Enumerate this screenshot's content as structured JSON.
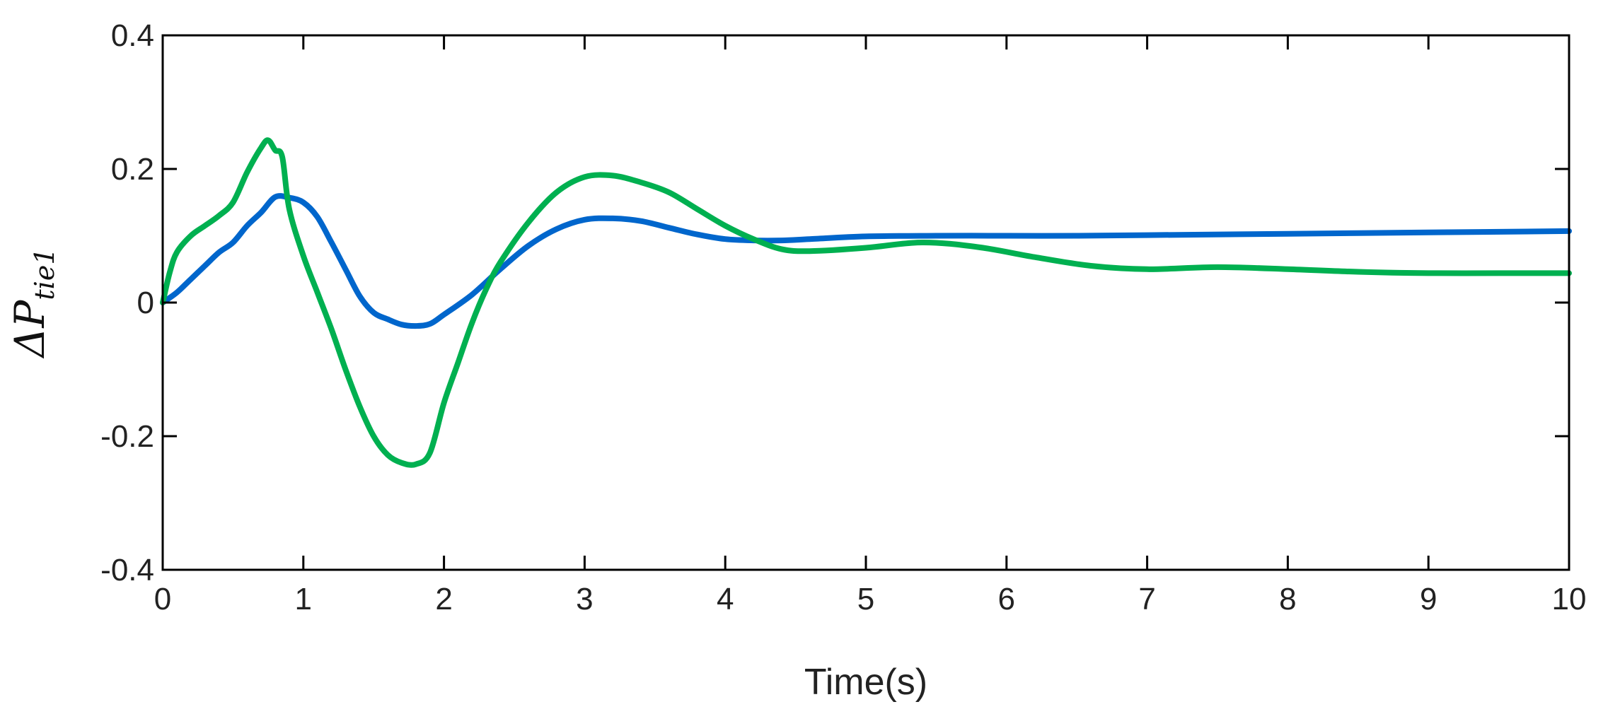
{
  "chart_data": {
    "type": "line",
    "title": "",
    "xlabel": "Time(s)",
    "ylabel": {
      "symbol": "ΔP",
      "subscript": "tie1"
    },
    "xlim": [
      0,
      10
    ],
    "ylim": [
      -0.4,
      0.4
    ],
    "xticks": [
      0,
      1,
      2,
      3,
      4,
      5,
      6,
      7,
      8,
      9,
      10
    ],
    "xtick_labels": [
      "0",
      "1",
      "2",
      "3",
      "4",
      "5",
      "6",
      "7",
      "8",
      "9",
      "10"
    ],
    "yticks": [
      -0.4,
      -0.2,
      0,
      0.2,
      0.4
    ],
    "ytick_labels": [
      "-0.4",
      "-0.2",
      "0",
      "0.2",
      "0.4"
    ],
    "grid": false,
    "legend": "none",
    "series": [
      {
        "color": "#0066cc",
        "x": [
          0,
          0.1,
          0.2,
          0.3,
          0.4,
          0.5,
          0.6,
          0.7,
          0.8,
          0.9,
          1.0,
          1.1,
          1.2,
          1.3,
          1.4,
          1.5,
          1.6,
          1.7,
          1.8,
          1.9,
          2.0,
          2.2,
          2.4,
          2.6,
          2.8,
          3.0,
          3.2,
          3.4,
          3.6,
          3.8,
          4.0,
          4.2,
          4.4,
          4.6,
          5.0,
          5.5,
          6.0,
          6.5,
          7.0,
          8.0,
          9.0,
          10.0
        ],
        "y": [
          0,
          0.015,
          0.035,
          0.055,
          0.075,
          0.09,
          0.115,
          0.135,
          0.158,
          0.157,
          0.15,
          0.128,
          0.09,
          0.05,
          0.01,
          -0.015,
          -0.025,
          -0.033,
          -0.035,
          -0.032,
          -0.018,
          0.012,
          0.05,
          0.085,
          0.11,
          0.124,
          0.126,
          0.122,
          0.112,
          0.102,
          0.095,
          0.093,
          0.093,
          0.095,
          0.099,
          0.1,
          0.1,
          0.1,
          0.101,
          0.103,
          0.105,
          0.107
        ]
      },
      {
        "color": "#00b050",
        "x": [
          0,
          0.05,
          0.1,
          0.2,
          0.3,
          0.4,
          0.5,
          0.6,
          0.7,
          0.75,
          0.8,
          0.85,
          0.9,
          1.0,
          1.1,
          1.2,
          1.3,
          1.4,
          1.5,
          1.6,
          1.7,
          1.8,
          1.9,
          2.0,
          2.1,
          2.2,
          2.3,
          2.4,
          2.6,
          2.8,
          3.0,
          3.2,
          3.4,
          3.6,
          3.8,
          4.0,
          4.2,
          4.4,
          4.6,
          5.0,
          5.4,
          5.8,
          6.2,
          6.6,
          7.0,
          7.5,
          8.0,
          8.5,
          9.0,
          9.5,
          10.0
        ],
        "y": [
          0,
          0.045,
          0.075,
          0.1,
          0.115,
          0.13,
          0.15,
          0.195,
          0.232,
          0.243,
          0.228,
          0.218,
          0.14,
          0.07,
          0.015,
          -0.04,
          -0.1,
          -0.155,
          -0.2,
          -0.228,
          -0.24,
          -0.242,
          -0.225,
          -0.15,
          -0.09,
          -0.03,
          0.02,
          0.06,
          0.12,
          0.165,
          0.188,
          0.19,
          0.18,
          0.165,
          0.14,
          0.115,
          0.095,
          0.08,
          0.077,
          0.082,
          0.09,
          0.083,
          0.068,
          0.055,
          0.05,
          0.053,
          0.05,
          0.046,
          0.044,
          0.044,
          0.044
        ]
      }
    ]
  }
}
